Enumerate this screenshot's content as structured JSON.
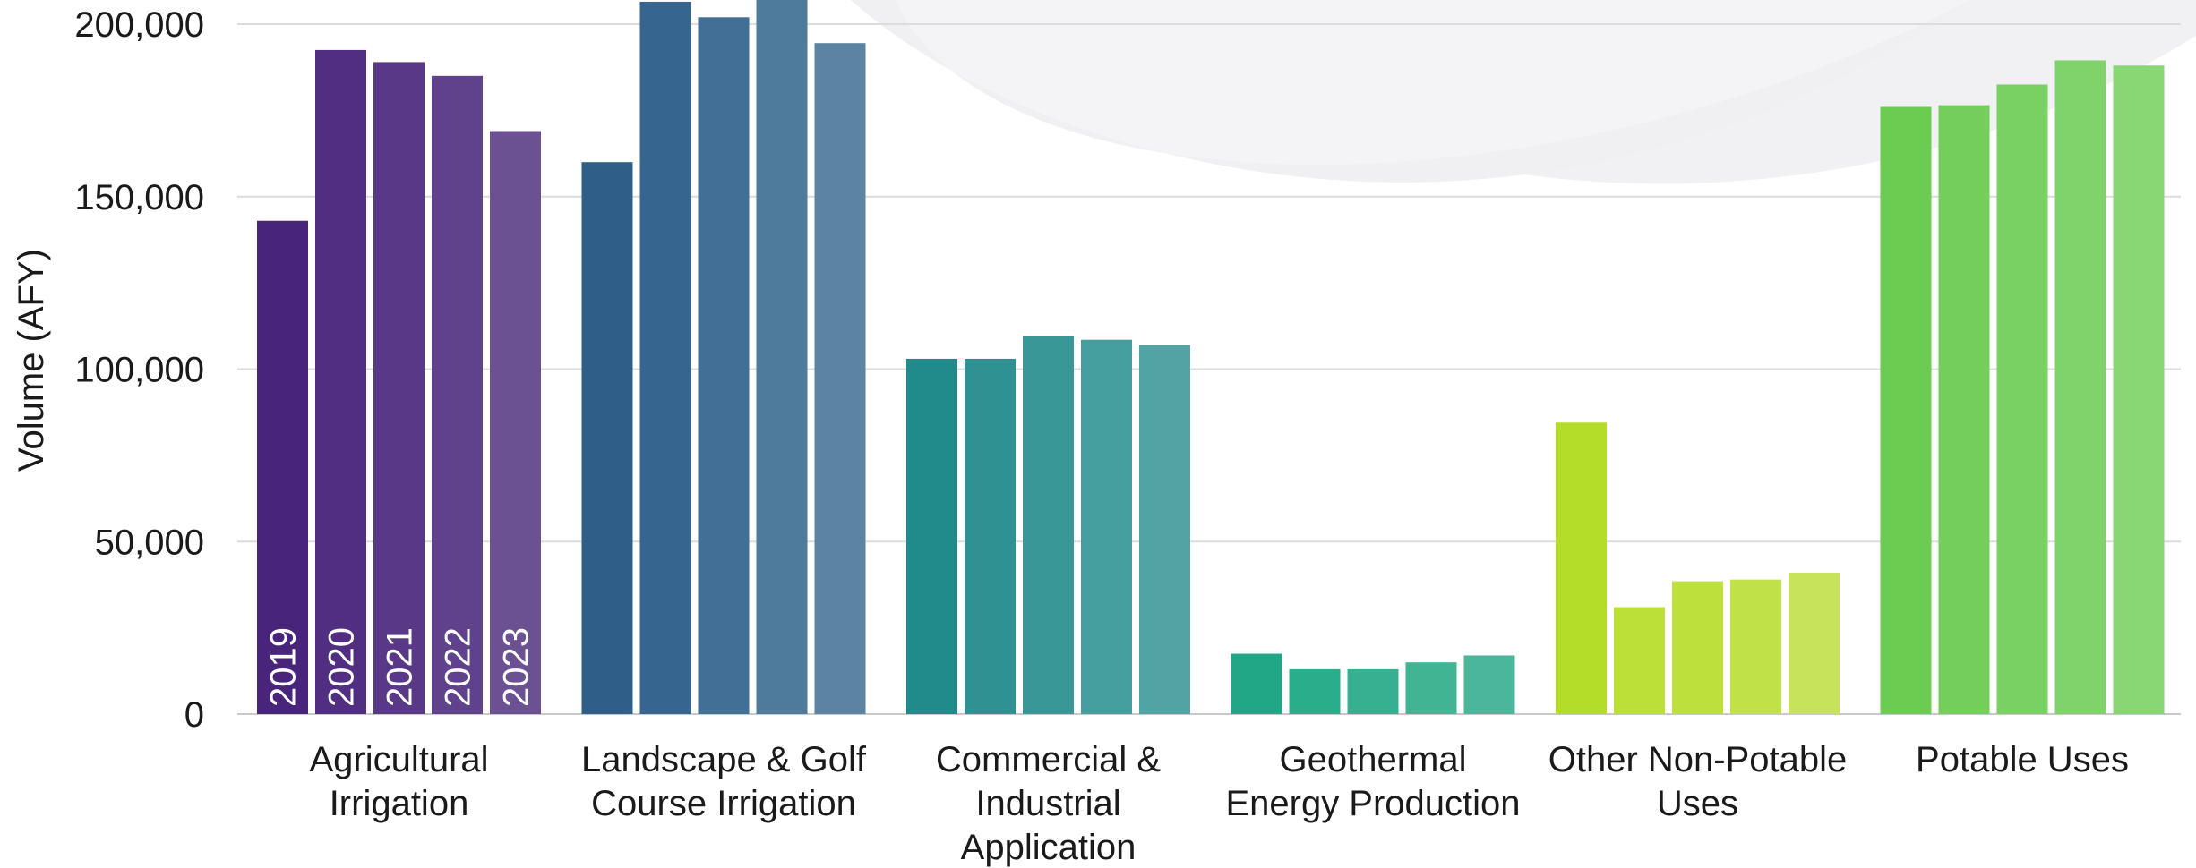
{
  "chart_data": {
    "type": "bar",
    "ylabel": "Volume (AFY)",
    "ylim": [
      0,
      200000
    ],
    "yticks": [
      0,
      50000,
      100000,
      150000,
      200000
    ],
    "ytick_labels": [
      "0",
      "50,000",
      "100,000",
      "150,000",
      "200,000"
    ],
    "grid": true,
    "categories": [
      [
        "Agricultural",
        "Irrigation"
      ],
      [
        "Landscape & Golf",
        "Course Irrigation"
      ],
      [
        "Commercial &",
        "Industrial",
        "Application"
      ],
      [
        "Geothermal",
        "Energy Production"
      ],
      [
        "Other Non-Potable",
        "Uses"
      ],
      [
        "Potable Uses"
      ]
    ],
    "series": [
      {
        "name": "2019",
        "values": [
          143000,
          160000,
          103000,
          17500,
          84500,
          176000
        ]
      },
      {
        "name": "2020",
        "values": [
          192500,
          206500,
          103000,
          13000,
          31000,
          176500
        ]
      },
      {
        "name": "2021",
        "values": [
          189000,
          202000,
          109500,
          13000,
          38500,
          182500
        ]
      },
      {
        "name": "2022",
        "values": [
          185000,
          208500,
          108500,
          15000,
          39000,
          189500
        ]
      },
      {
        "name": "2023",
        "values": [
          169000,
          194500,
          107000,
          17000,
          41000,
          188000
        ]
      }
    ],
    "category_colors": [
      [
        "#48257a",
        "#512e81",
        "#583887",
        "#60428c",
        "#6b5092"
      ],
      [
        "#2f5f88",
        "#36668f",
        "#426f95",
        "#4e7a9c",
        "#5b84a2"
      ],
      [
        "#218a8a",
        "#2f9191",
        "#3a9797",
        "#469f9f",
        "#52a3a3"
      ],
      [
        "#21a785",
        "#2aad8b",
        "#36b090",
        "#41b494",
        "#4cb69a"
      ],
      [
        "#b4dd2a",
        "#bbe037",
        "#bce03c",
        "#c0e148",
        "#c6e35b"
      ],
      [
        "#6ccb51",
        "#74ce5b",
        "#7ad163",
        "#80d36a",
        "#89d674"
      ]
    ],
    "year_labels_shown_in": 0
  }
}
